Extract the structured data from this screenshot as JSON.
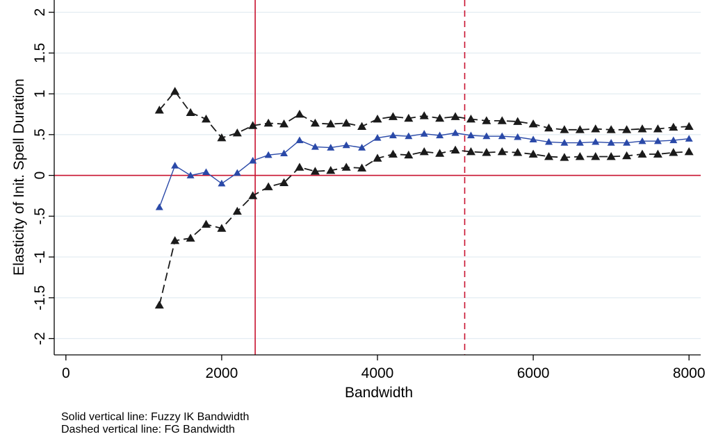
{
  "chart_data": {
    "type": "line",
    "xlabel": "Bandwidth",
    "ylabel": "Elasticity of Init. Spell Duration",
    "xlim": [
      -150,
      8150
    ],
    "ylim": [
      -2.2,
      2.15
    ],
    "xticks": [
      0,
      2000,
      4000,
      6000,
      8000
    ],
    "yticks": [
      -2,
      -1.5,
      -1,
      -0.5,
      0,
      0.5,
      1,
      1.5,
      2
    ],
    "ytick_labels": [
      "-2",
      "-1.5",
      "-1",
      "-.5",
      "0",
      ".5",
      "1",
      "1.5",
      "2"
    ],
    "grid": "horizontal",
    "hline": 0,
    "vline_solid": 2430,
    "vline_dashed": 5120,
    "x": [
      1200,
      1400,
      1600,
      1800,
      2000,
      2200,
      2400,
      2600,
      2800,
      3000,
      3200,
      3400,
      3600,
      3800,
      4000,
      4200,
      4400,
      4600,
      4800,
      5000,
      5200,
      5400,
      5600,
      5800,
      6000,
      6200,
      6400,
      6600,
      6800,
      7000,
      7200,
      7400,
      7600,
      7800,
      8000
    ],
    "series": [
      {
        "style": "dashed",
        "values": [
          0.8,
          1.03,
          0.77,
          0.69,
          0.46,
          0.52,
          0.61,
          0.64,
          0.63,
          0.75,
          0.64,
          0.63,
          0.64,
          0.6,
          0.69,
          0.72,
          0.7,
          0.73,
          0.7,
          0.72,
          0.69,
          0.67,
          0.67,
          0.66,
          0.63,
          0.58,
          0.56,
          0.56,
          0.57,
          0.56,
          0.56,
          0.57,
          0.57,
          0.59,
          0.6
        ]
      },
      {
        "style": "solid",
        "values": [
          -0.39,
          0.12,
          0.0,
          0.04,
          -0.1,
          0.03,
          0.18,
          0.25,
          0.27,
          0.43,
          0.35,
          0.34,
          0.37,
          0.34,
          0.46,
          0.49,
          0.48,
          0.51,
          0.49,
          0.52,
          0.49,
          0.48,
          0.48,
          0.47,
          0.44,
          0.41,
          0.4,
          0.4,
          0.41,
          0.4,
          0.4,
          0.42,
          0.42,
          0.43,
          0.45
        ]
      },
      {
        "style": "dashed",
        "values": [
          -1.59,
          -0.8,
          -0.77,
          -0.6,
          -0.65,
          -0.44,
          -0.25,
          -0.14,
          -0.09,
          0.1,
          0.05,
          0.06,
          0.1,
          0.09,
          0.21,
          0.26,
          0.25,
          0.29,
          0.27,
          0.31,
          0.29,
          0.28,
          0.29,
          0.28,
          0.26,
          0.23,
          0.22,
          0.23,
          0.23,
          0.23,
          0.24,
          0.26,
          0.26,
          0.28,
          0.29
        ]
      }
    ],
    "colors": {
      "ci_line": "#1a1a1a",
      "estimate_line": "#2a49a8",
      "reference_lines": "#c8102e",
      "grid": "#e3ecf2"
    }
  },
  "notes": [
    "Solid vertical line: Fuzzy IK Bandwidth",
    "Dashed vertical line: FG Bandwidth"
  ]
}
